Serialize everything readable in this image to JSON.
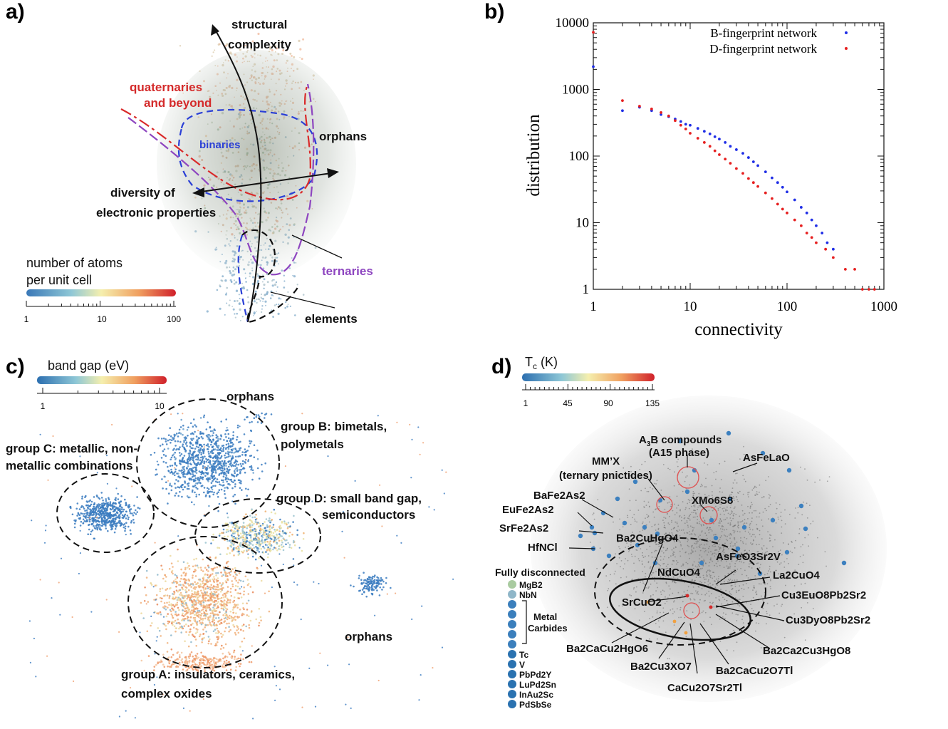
{
  "panels": {
    "a": {
      "label": "a)",
      "annotations": {
        "structural": "structural",
        "complexity": "complexity",
        "quaternaries": "quaternaries",
        "and_beyond": "and beyond",
        "binaries": "binaries",
        "orphans": "orphans",
        "diversity_of": "diversity of",
        "electronic_properties": "electronic properties",
        "ternaries": "ternaries",
        "elements": "elements"
      },
      "colorbar": {
        "title_line1": "number of atoms",
        "title_line2": "per unit cell",
        "ticks": [
          "1",
          "10",
          "100"
        ]
      }
    },
    "b": {
      "label": "b)",
      "chart_data": {
        "type": "scatter",
        "title": "",
        "xlabel": "connectivity",
        "ylabel": "distribution",
        "xscale": "log",
        "yscale": "log",
        "xlim": [
          1,
          1000
        ],
        "ylim": [
          1,
          10000
        ],
        "x_tick_labels": [
          "1",
          "10",
          "100",
          "1000"
        ],
        "y_tick_labels": [
          "1",
          "10",
          "100",
          "1000",
          "10000"
        ],
        "legend_position": "top-right",
        "series": [
          {
            "name": "B-fingerprint network",
            "color": "#1f2ee6",
            "x": [
              1,
              2,
              3,
              4,
              5,
              6,
              7,
              8,
              9,
              10,
              12,
              14,
              16,
              18,
              20,
              23,
              26,
              30,
              35,
              40,
              45,
              50,
              60,
              70,
              80,
              90,
              100,
              120,
              140,
              160,
              180,
              200,
              230,
              260,
              300
            ],
            "y": [
              2200,
              480,
              540,
              480,
              420,
              390,
              360,
              330,
              300,
              290,
              260,
              235,
              215,
              195,
              180,
              160,
              140,
              125,
              110,
              95,
              82,
              72,
              58,
              47,
              40,
              34,
              29,
              22,
              17,
              14,
              11,
              9,
              7,
              5,
              4
            ]
          },
          {
            "name": "D-fingerprint network",
            "color": "#e61f1f",
            "x": [
              1,
              2,
              3,
              4,
              5,
              6,
              7,
              8,
              9,
              10,
              12,
              14,
              16,
              18,
              20,
              23,
              26,
              30,
              35,
              40,
              45,
              50,
              60,
              70,
              80,
              90,
              100,
              120,
              140,
              160,
              180,
              200,
              250,
              300,
              400,
              500,
              600,
              700,
              800
            ],
            "y": [
              7200,
              680,
              560,
              510,
              450,
              400,
              340,
              290,
              255,
              220,
              185,
              160,
              140,
              120,
              105,
              90,
              78,
              65,
              55,
              46,
              40,
              35,
              28,
              23,
              19,
              16,
              14,
              11,
              9,
              7,
              6,
              5,
              4,
              3,
              2,
              2,
              1,
              1,
              1
            ]
          }
        ]
      }
    },
    "c": {
      "label": "c)",
      "annotations": {
        "orphans_top": "orphans",
        "group_b_1": "group B: bimetals,",
        "group_b_2": "polymetals",
        "group_c_1": "group C: metallic, non-",
        "group_c_2": "metallic combinations",
        "group_d_1": "group D: small band gap,",
        "group_d_2": "semiconductors",
        "orphans_right": "orphans",
        "group_a_1": "group A: insulators, ceramics,",
        "group_a_2": "complex oxides"
      },
      "colorbar": {
        "title": "band gap (eV)",
        "ticks": [
          "1",
          "10"
        ]
      }
    },
    "d": {
      "label": "d)",
      "colorbar": {
        "title": "T",
        "title_sub": "c",
        "title_unit": " (K)",
        "ticks": [
          "1",
          "45",
          "90",
          "135"
        ]
      },
      "annotations": {
        "a3b_1": "A",
        "a3b_sub": "3",
        "a3b_2": "B compounds",
        "a15": "(A15 phase)",
        "mmx_1": "MM’X",
        "mmx_2": "(ternary pnictides)",
        "asfelao": "AsFeLaO",
        "bafe2as2": "BaFe2As2",
        "xmo6s8": "XMo6S8",
        "eufe2as2": "EuFe2As2",
        "srfe2as2": "SrFe2As2",
        "ba2cuhgo4": "Ba2CuHgO4",
        "hfncl": "HfNCl",
        "asfeo3sr2v": "AsFeO3Sr2V",
        "ndcuo4": "NdCuO4",
        "la2cuo4": "La2CuO4",
        "srcuo2": "SrCuO2",
        "cu3euo8pb2sr2": "Cu3EuO8Pb2Sr2",
        "cu3dyo8pb2sr2": "Cu3DyO8Pb2Sr2",
        "ba2cacu2hgo6": "Ba2CaCu2HgO6",
        "ba2ca2cu3hgo8": "Ba2Ca2Cu3HgO8",
        "ba2cu3xo7": "Ba2Cu3XO7",
        "ba2cacu2o7tl": "Ba2CaCu2O7Tl",
        "cacu2o7sr2tl": "CaCu2O7Sr2Tl"
      },
      "disconnected": {
        "title": "Fully disconnected",
        "items": [
          "MgB2",
          "NbN",
          "Tc",
          "V",
          "PbPd2Y",
          "LuPd2Sn",
          "InAu2Sc",
          "PdSbSe"
        ],
        "metal_carbides_1": "Metal",
        "metal_carbides_2": "Carbides"
      }
    }
  }
}
